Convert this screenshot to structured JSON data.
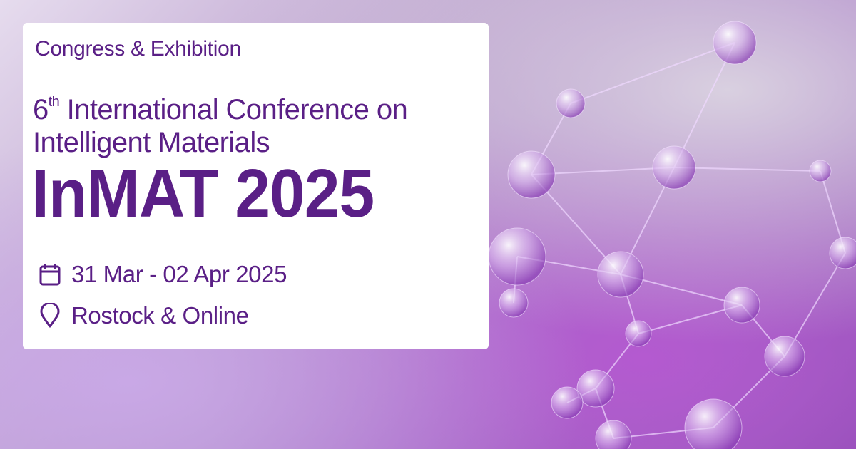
{
  "colors": {
    "brand": "#5a1f86",
    "card": "#ffffff",
    "background": "#a373c4"
  },
  "card": {
    "subtitle": "Congress & Exhibition",
    "ordinal_number": "6",
    "ordinal_suffix": "th",
    "title_line1": " International Conference on",
    "title_line2": "Intelligent Materials",
    "event_name": "InMAT 2025",
    "date": {
      "icon": "calendar-icon",
      "text": "31 Mar - 02 Apr 2025"
    },
    "location": {
      "icon": "map-pin-icon",
      "text": "Rostock & Online"
    }
  }
}
